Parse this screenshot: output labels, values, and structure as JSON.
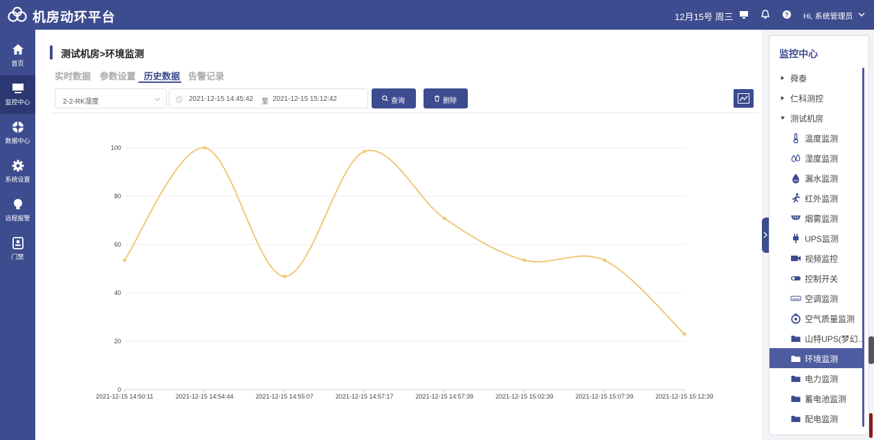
{
  "header": {
    "app_title": "机房动环平台",
    "date": "12月15号 周三",
    "user_greeting": "Hi, 系统管理员"
  },
  "nav": [
    {
      "label": "首页",
      "icon": "home-icon",
      "active": false
    },
    {
      "label": "监控中心",
      "icon": "monitor-icon",
      "active": true
    },
    {
      "label": "数据中心",
      "icon": "data-center-icon",
      "active": false
    },
    {
      "label": "系统设置",
      "icon": "gear-icon",
      "active": false
    },
    {
      "label": "远程报警",
      "icon": "bulb-icon",
      "active": false
    },
    {
      "label": "门禁",
      "icon": "access-control-icon",
      "active": false
    }
  ],
  "breadcrumb": "测试机房>环境监测",
  "tabs": [
    {
      "label": "实时数据",
      "active": false
    },
    {
      "label": "参数设置",
      "active": false
    },
    {
      "label": "历史数据",
      "active": true
    },
    {
      "label": "告警记录",
      "active": false
    }
  ],
  "filters": {
    "sensor": "2-2-RK湿度",
    "start": "2021-12-15 14:45:42",
    "range_sep": "至",
    "end": "2021-12-15 15:12:42",
    "query_label": "查询",
    "delete_label": "删除"
  },
  "chart_data": {
    "type": "line",
    "smooth": true,
    "categories": [
      "2021-12-15 14:50:11",
      "2021-12-15 14:54:44",
      "2021-12-15 14:55:07",
      "2021-12-15 14:57:17",
      "2021-12-15 14:57:39",
      "2021-12-15 15:02:39",
      "2021-12-15 15:07:39",
      "2021-12-15 15:12:39"
    ],
    "values": [
      53.5,
      100,
      46.8,
      98.5,
      70.8,
      53.5,
      53.5,
      23
    ],
    "ylim": [
      0,
      100
    ],
    "yticks": [
      0,
      20,
      40,
      60,
      80,
      100
    ],
    "grid": true,
    "color": "#f0c878"
  },
  "right_panel": {
    "title": "监控中心",
    "items": [
      {
        "label": "舜泰",
        "icon": "caret-right-icon",
        "level": 0
      },
      {
        "label": "仁科测控",
        "icon": "caret-right-icon",
        "level": 0
      },
      {
        "label": "测试机房",
        "icon": "caret-down-icon",
        "level": 0
      },
      {
        "label": "温度监测",
        "icon": "thermometer-icon",
        "level": 1
      },
      {
        "label": "湿度监测",
        "icon": "droplets-icon",
        "level": 1
      },
      {
        "label": "漏水监测",
        "icon": "water-drop-icon",
        "level": 1
      },
      {
        "label": "红外监测",
        "icon": "running-person-icon",
        "level": 1
      },
      {
        "label": "烟雾监测",
        "icon": "smoke-detector-icon",
        "level": 1
      },
      {
        "label": "UPS监测",
        "icon": "plug-icon",
        "level": 1
      },
      {
        "label": "视频监控",
        "icon": "video-camera-icon",
        "level": 1
      },
      {
        "label": "控制开关",
        "icon": "toggle-icon",
        "level": 1
      },
      {
        "label": "空调监测",
        "icon": "air-conditioner-icon",
        "level": 1
      },
      {
        "label": "空气质量监测",
        "icon": "air-quality-icon",
        "level": 1
      },
      {
        "label": "山特UPS(梦幻...",
        "icon": "folder-icon",
        "level": 1
      },
      {
        "label": "环境监测",
        "icon": "folder-icon",
        "level": 1,
        "selected": true
      },
      {
        "label": "电力监测",
        "icon": "folder-icon",
        "level": 1
      },
      {
        "label": "蓄电池监测",
        "icon": "folder-icon",
        "level": 1
      },
      {
        "label": "配电监测",
        "icon": "folder-icon",
        "level": 1
      }
    ]
  }
}
